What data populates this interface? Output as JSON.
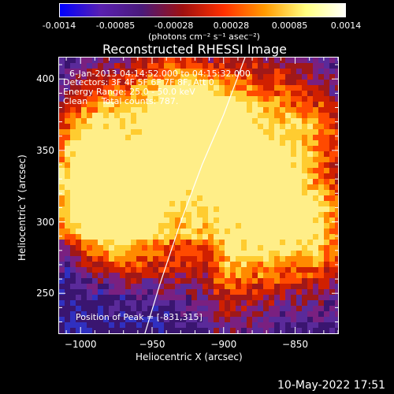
{
  "colorbar": {
    "ticks": [
      "-0.0014",
      "-0.00085",
      "-0.00028",
      "0.00028",
      "0.00085",
      "0.0014"
    ],
    "units": "(photons cm⁻² s⁻¹ asec⁻²)",
    "range": [
      -0.0014,
      0.0014
    ],
    "colors": [
      "#0000ff",
      "#5a20b0",
      "#4a1a7a",
      "#a01010",
      "#ff3000",
      "#ff9a00",
      "#ffff80",
      "#ffffff"
    ]
  },
  "chart_data": {
    "type": "heatmap",
    "title": "Reconstructed RHESSI Image",
    "xlabel": "Heliocentric X (arcsec)",
    "ylabel": "Heliocentric Y (arcsec)",
    "xlim": [
      -1015,
      -820
    ],
    "ylim": [
      222,
      415
    ],
    "xticks": [
      -1000,
      -950,
      -900,
      -850
    ],
    "yticks": [
      250,
      300,
      350,
      400
    ],
    "xtick_labels": [
      "−1000",
      "−950",
      "−900",
      "−850"
    ],
    "ytick_labels": [
      "250",
      "300",
      "350",
      "400"
    ],
    "peak_position": [
      -831,
      315
    ],
    "limb_curve": [
      [
        -955,
        222
      ],
      [
        -945,
        255
      ],
      [
        -930,
        300
      ],
      [
        -915,
        340
      ],
      [
        -900,
        375
      ],
      [
        -885,
        415
      ]
    ]
  },
  "info": {
    "line1": "6-Jan-2013 04:14:52.000 to 04:15:32.000",
    "line2": "Detectors: 3F 4F 5F 6F 7F 8F, Att 0",
    "line3": "Energy Range: 25.0 - 50.0 keV",
    "line4": "Clean     Total counts: 787.",
    "peak": "Position of Peak = [-831,315]"
  },
  "timestamp": "10-May-2022 17:51"
}
